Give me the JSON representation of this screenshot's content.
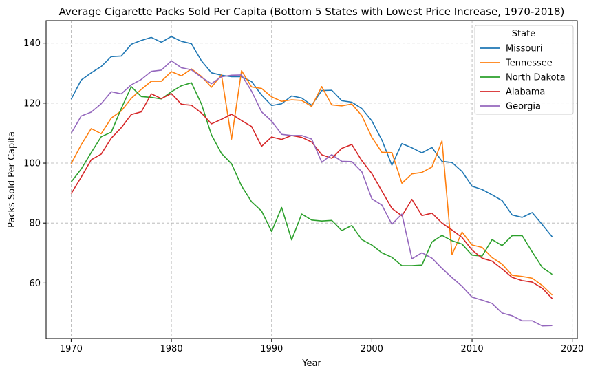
{
  "chart_data": {
    "type": "line",
    "title": "Average Cigarette Packs Sold Per Capita (Bottom 5 States with Lowest Price Increase, 1970-2018)",
    "xlabel": "Year",
    "ylabel": "Packs Sold Per Capita",
    "xlim": [
      1967.5,
      2020.5
    ],
    "ylim": [
      41.5,
      147.5
    ],
    "xticks": [
      1970,
      1980,
      1990,
      2000,
      2010,
      2020
    ],
    "yticks": [
      60,
      80,
      100,
      120,
      140
    ],
    "grid": true,
    "legend": {
      "title": "State",
      "placement": "top-right"
    },
    "x": [
      1970,
      1971,
      1972,
      1973,
      1974,
      1975,
      1976,
      1977,
      1978,
      1979,
      1980,
      1981,
      1982,
      1983,
      1984,
      1985,
      1986,
      1987,
      1988,
      1989,
      1990,
      1991,
      1992,
      1993,
      1994,
      1995,
      1996,
      1997,
      1998,
      1999,
      2000,
      2001,
      2002,
      2003,
      2004,
      2005,
      2006,
      2007,
      2008,
      2009,
      2010,
      2011,
      2012,
      2013,
      2014,
      2015,
      2016,
      2017,
      2018
    ],
    "series": [
      {
        "name": "Missouri",
        "color": "#1f77b4",
        "values": [
          121.3,
          127.7,
          130.1,
          132.2,
          135.5,
          135.7,
          139.6,
          140.9,
          141.9,
          140.3,
          142.2,
          140.6,
          139.8,
          134.1,
          130.1,
          129.3,
          128.8,
          128.8,
          127.2,
          122.7,
          119.2,
          119.8,
          122.4,
          121.7,
          119.3,
          124.2,
          124.3,
          120.8,
          120.3,
          118.2,
          114.1,
          107.7,
          99.3,
          106.5,
          105.1,
          103.4,
          105.2,
          100.6,
          100.2,
          97.2,
          92.3,
          91.2,
          89.4,
          87.5,
          82.7,
          81.9,
          83.5,
          79.5,
          75.4
        ]
      },
      {
        "name": "Tennessee",
        "color": "#ff7f0e",
        "values": [
          99.8,
          106.1,
          111.5,
          109.8,
          115.0,
          117.4,
          121.6,
          124.6,
          127.3,
          127.3,
          130.5,
          129.1,
          131.4,
          128.9,
          125.3,
          129.4,
          108.0,
          130.8,
          125.4,
          124.9,
          122.1,
          120.6,
          121.1,
          120.9,
          118.9,
          125.5,
          119.4,
          119.1,
          119.7,
          115.8,
          108.6,
          103.6,
          103.5,
          93.3,
          96.4,
          96.9,
          98.7,
          107.4,
          69.5,
          77.0,
          72.7,
          71.9,
          68.5,
          66.3,
          62.6,
          62.2,
          61.6,
          59.2,
          56.0
        ]
      },
      {
        "name": "North Dakota",
        "color": "#2ca02c",
        "values": [
          93.7,
          98.0,
          103.5,
          108.8,
          110.3,
          118.2,
          125.5,
          122.2,
          121.9,
          121.4,
          123.8,
          125.8,
          126.8,
          119.7,
          109.4,
          103.2,
          99.8,
          92.4,
          87.1,
          84.0,
          77.2,
          85.2,
          74.4,
          83.0,
          81.0,
          80.7,
          80.9,
          77.5,
          79.2,
          74.5,
          72.7,
          70.1,
          68.6,
          65.8,
          65.8,
          66.0,
          73.7,
          75.9,
          74.1,
          73.0,
          69.3,
          69.0,
          74.5,
          72.5,
          75.8,
          75.8,
          70.4,
          65.2,
          62.9
        ]
      },
      {
        "name": "Alabama",
        "color": "#d62728",
        "values": [
          89.8,
          95.3,
          101.1,
          103.0,
          108.3,
          111.8,
          116.2,
          117.1,
          123.1,
          121.5,
          123.2,
          119.6,
          119.3,
          116.7,
          113.1,
          114.6,
          116.3,
          114.2,
          112.2,
          105.6,
          108.7,
          107.9,
          109.2,
          108.6,
          107.0,
          102.8,
          101.6,
          104.9,
          106.2,
          100.8,
          96.5,
          90.7,
          84.9,
          82.4,
          87.9,
          82.5,
          83.3,
          80.0,
          77.7,
          75.2,
          71.0,
          68.3,
          67.3,
          64.7,
          61.9,
          60.8,
          60.3,
          58.3,
          54.8
        ]
      },
      {
        "name": "Georgia",
        "color": "#9467bd",
        "values": [
          109.9,
          115.7,
          117.0,
          119.8,
          123.8,
          123.1,
          126.1,
          127.9,
          130.6,
          131.0,
          134.1,
          131.8,
          131.1,
          128.6,
          126.5,
          128.8,
          129.3,
          129.4,
          124.0,
          117.1,
          114.0,
          109.6,
          109.2,
          109.2,
          108.0,
          100.3,
          102.8,
          100.6,
          100.5,
          97.1,
          88.1,
          86.0,
          79.6,
          83.0,
          68.1,
          70.1,
          68.3,
          64.9,
          61.8,
          58.9,
          55.3,
          54.3,
          53.2,
          50.0,
          49.1,
          47.4,
          47.4,
          45.7,
          45.8
        ]
      }
    ]
  }
}
